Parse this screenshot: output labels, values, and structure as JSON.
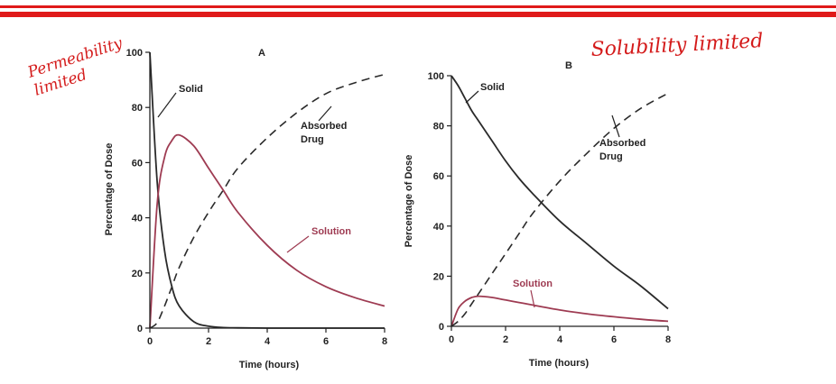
{
  "annotations": {
    "handwritten_left_line1": "Permeability",
    "handwritten_left_line2": "limited",
    "handwritten_right": "Solubility limited",
    "handwriting_color": "#d41b1b"
  },
  "header_rule_color": "#e01a1a",
  "chart_data": [
    {
      "type": "line",
      "panel_label": "A",
      "xlabel": "Time (hours)",
      "ylabel": "Percentage of Dose",
      "xlim": [
        0,
        8
      ],
      "ylim": [
        0,
        100
      ],
      "x_ticks": [
        0,
        2,
        4,
        6,
        8
      ],
      "y_ticks": [
        0,
        20,
        40,
        60,
        80,
        100
      ],
      "x_tick_labels": [
        "0",
        "2",
        "4",
        "6",
        "8"
      ],
      "y_tick_labels": [
        "0",
        "20",
        "40",
        "60",
        "80",
        "100"
      ],
      "x": [
        0,
        0.25,
        0.5,
        0.75,
        1,
        1.5,
        2,
        2.5,
        3,
        4,
        5,
        6,
        7,
        8
      ],
      "series": [
        {
          "name": "Solid",
          "style": "solid",
          "color": "#2a2a2a",
          "values": [
            100,
            53,
            28,
            15,
            8,
            2.3,
            0.7,
            0.2,
            0.1,
            0,
            0,
            0,
            0,
            0
          ]
        },
        {
          "name": "Solution",
          "style": "solid",
          "color": "#9e3b52",
          "values": [
            0,
            45,
            62,
            68,
            70,
            66,
            58,
            50,
            42,
            30,
            21,
            15,
            11,
            8
          ]
        },
        {
          "name": "Absorbed Drug",
          "style": "dashed",
          "color": "#2a2a2a",
          "values": [
            0,
            2,
            8,
            15,
            22,
            33,
            42,
            50,
            58,
            69,
            78,
            85,
            89,
            92
          ]
        }
      ],
      "labels": {
        "solid": "Solid",
        "absorbed_line1": "Absorbed",
        "absorbed_line2": "Drug",
        "solution": "Solution"
      }
    },
    {
      "type": "line",
      "panel_label": "B",
      "xlabel": "Time (hours)",
      "ylabel": "Percentage of Dose",
      "xlim": [
        0,
        8
      ],
      "ylim": [
        0,
        100
      ],
      "x_ticks": [
        0,
        2,
        4,
        6,
        8
      ],
      "y_ticks": [
        0,
        20,
        40,
        60,
        80,
        100
      ],
      "x_tick_labels": [
        "0",
        "2",
        "4",
        "6",
        "8"
      ],
      "y_tick_labels": [
        "0",
        "20",
        "40",
        "60",
        "80",
        "100"
      ],
      "x": [
        0,
        0.25,
        0.5,
        0.75,
        1,
        1.5,
        2,
        2.5,
        3,
        4,
        5,
        6,
        7,
        8
      ],
      "series": [
        {
          "name": "Solid",
          "style": "solid",
          "color": "#2a2a2a",
          "values": [
            100,
            96,
            91,
            86,
            82,
            74,
            66,
            59,
            53,
            42,
            33,
            24,
            16,
            7
          ]
        },
        {
          "name": "Solution",
          "style": "solid",
          "color": "#9e3b52",
          "values": [
            0,
            7,
            10,
            11.5,
            12,
            11.5,
            10.5,
            9.5,
            8.5,
            6.5,
            5,
            3.8,
            2.8,
            2
          ]
        },
        {
          "name": "Absorbed Drug",
          "style": "dashed",
          "color": "#2a2a2a",
          "values": [
            0,
            2,
            5,
            9,
            13,
            21,
            29,
            37,
            45,
            58,
            69,
            79,
            87,
            93
          ]
        }
      ],
      "labels": {
        "solid": "Solid",
        "absorbed_line1": "Absorbed",
        "absorbed_line2": "Drug",
        "solution": "Solution"
      }
    }
  ]
}
